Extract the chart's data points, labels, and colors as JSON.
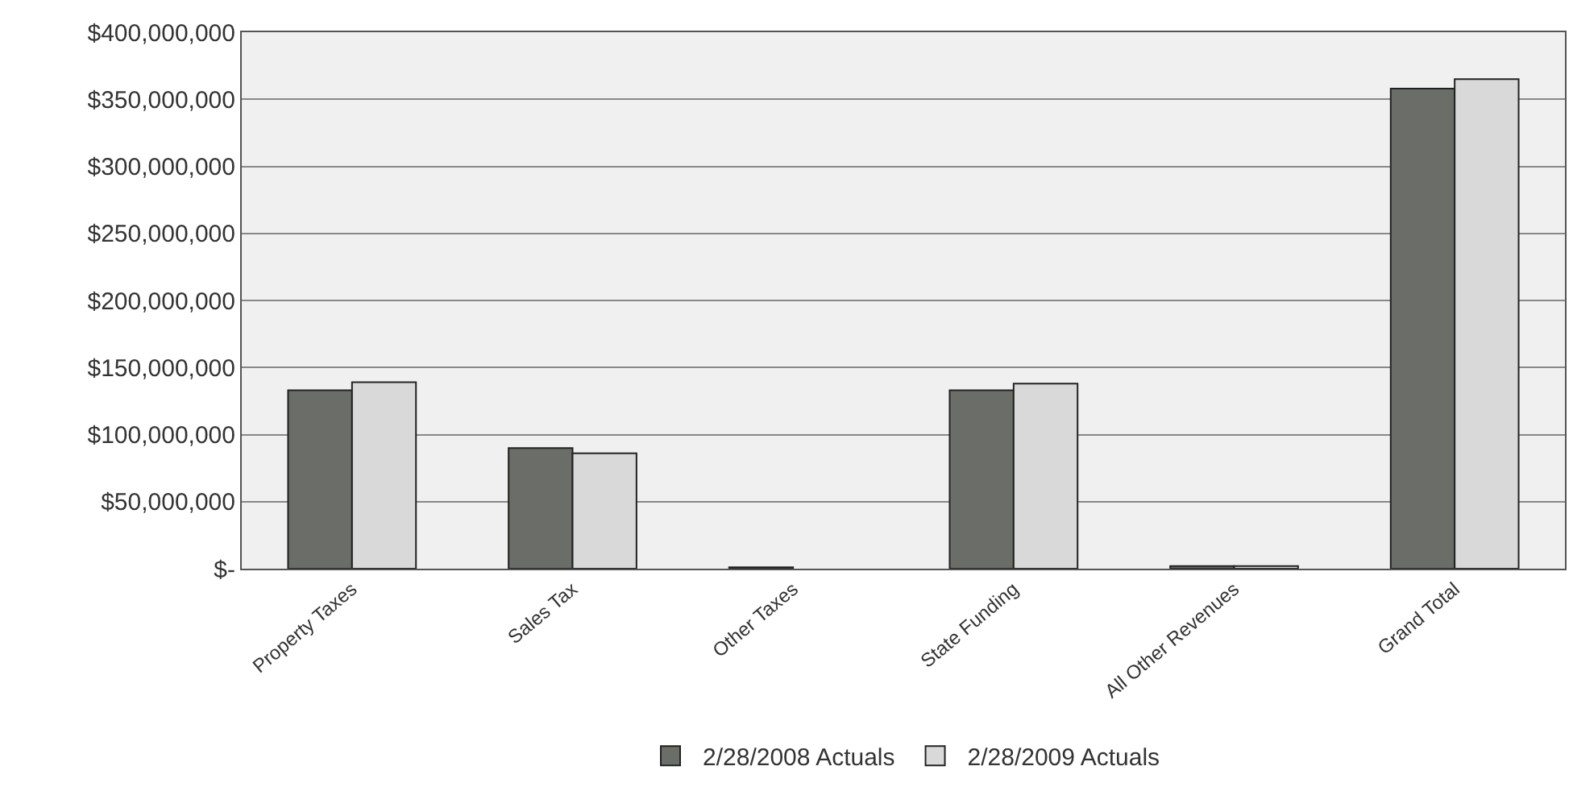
{
  "chart_data": {
    "type": "bar",
    "categories": [
      "Property Taxes",
      "Sales Tax",
      "Other Taxes",
      "State Funding",
      "All Other Revenues",
      "Grand Total"
    ],
    "series": [
      {
        "name": "2/28/2008 Actuals",
        "color": "#6b6e68",
        "values": [
          133000000,
          90000000,
          1000000,
          133000000,
          2000000,
          358000000
        ]
      },
      {
        "name": "2/28/2009 Actuals",
        "color": "#d9d9d9",
        "values": [
          139000000,
          86000000,
          null,
          138000000,
          2000000,
          365000000
        ]
      }
    ],
    "ylim": [
      0,
      400000000
    ],
    "yticks": [
      {
        "value": 0,
        "label": "$-"
      },
      {
        "value": 50000000,
        "label": "$50,000,000"
      },
      {
        "value": 100000000,
        "label": "$100,000,000"
      },
      {
        "value": 150000000,
        "label": "$150,000,000"
      },
      {
        "value": 200000000,
        "label": "$200,000,000"
      },
      {
        "value": 250000000,
        "label": "$250,000,000"
      },
      {
        "value": 300000000,
        "label": "$300,000,000"
      },
      {
        "value": 350000000,
        "label": "$350,000,000"
      },
      {
        "value": 400000000,
        "label": "$400,000,000"
      }
    ],
    "grid": "y",
    "legend": "bottom"
  }
}
